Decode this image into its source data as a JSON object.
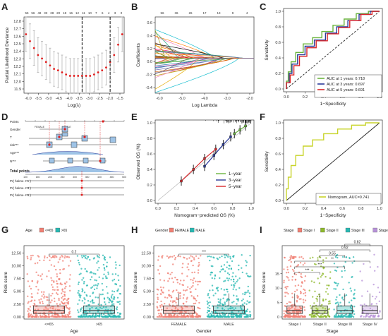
{
  "panels": {
    "A": "A",
    "B": "B",
    "C": "C",
    "D": "D",
    "E": "E",
    "F": "F",
    "G": "G",
    "H": "H",
    "I": "I"
  },
  "chart_data": [
    {
      "id": "A",
      "type": "scatter",
      "xlabel": "Log(λ)",
      "ylabel": "Partial Likelihood Deviance",
      "x": [
        -6.3,
        -6.1,
        -5.9,
        -5.7,
        -5.5,
        -5.3,
        -5.1,
        -4.9,
        -4.7,
        -4.5,
        -4.3,
        -4.1,
        -3.9,
        -3.7,
        -3.5,
        -3.3,
        -3.1,
        -2.9,
        -2.7,
        -2.5,
        -2.3,
        -2.1,
        -1.9,
        -1.7,
        -1.5
      ],
      "y": [
        12.7,
        12.6,
        12.5,
        12.4,
        12.35,
        12.3,
        12.25,
        12.2,
        12.18,
        12.15,
        12.12,
        12.1,
        12.1,
        12.1,
        12.1,
        12.1,
        12.1,
        12.12,
        12.15,
        12.18,
        12.22,
        12.3,
        12.4,
        12.55,
        12.7
      ],
      "err": 0.25,
      "xticks": [
        "-6.0",
        "-5.5",
        "-5.0",
        "-4.5",
        "-4.0",
        "-3.5",
        "-3.0",
        "-2.5",
        "-2.0",
        "-1.5"
      ],
      "yticks": [
        "11.9",
        "12.0",
        "12.1",
        "12.2",
        "12.3",
        "12.4",
        "12.5",
        "12.6",
        "12.7",
        "12.8"
      ],
      "top_ticks": [
        "55",
        "56",
        "48",
        "33",
        "28",
        "20",
        "18",
        "16",
        "12",
        "11",
        "10",
        "7",
        "6",
        "4",
        "3",
        "0"
      ],
      "xlim": [
        -6.4,
        -1.4
      ],
      "ylim": [
        11.85,
        12.95
      ],
      "vlines": [
        -3.5,
        -2.1
      ]
    },
    {
      "id": "B",
      "type": "line",
      "xlabel": "Log Lambda",
      "ylabel": "Coefficients",
      "xticks": [
        "-6.0",
        "-5.0",
        "-4.0",
        "-3.0",
        "-2.0"
      ],
      "yticks": [
        "-0.4",
        "-0.2",
        "0.0",
        "0.2",
        "0.4",
        "0.6"
      ],
      "top_ticks": [
        "56",
        "36",
        "26",
        "17",
        "13",
        "9",
        "4"
      ],
      "xlim": [
        -6.3,
        -1.8
      ],
      "ylim": [
        -0.55,
        0.65
      ]
    },
    {
      "id": "C",
      "type": "line",
      "xlabel": "1−Specificity",
      "ylabel": "Sensitivity",
      "xticks": [
        "0.0",
        "0.2",
        "0.4",
        "0.6",
        "0.8",
        "1.0"
      ],
      "yticks": [
        "0.0",
        "0.2",
        "0.4",
        "0.6",
        "0.8",
        "1.0"
      ],
      "series": [
        {
          "name": "AUC at 1 years: 0.718",
          "color": "#6ab43e",
          "points": [
            [
              0,
              0
            ],
            [
              0.02,
              0.1
            ],
            [
              0.05,
              0.22
            ],
            [
              0.1,
              0.35
            ],
            [
              0.18,
              0.47
            ],
            [
              0.28,
              0.58
            ],
            [
              0.38,
              0.66
            ],
            [
              0.5,
              0.74
            ],
            [
              0.62,
              0.82
            ],
            [
              0.75,
              0.9
            ],
            [
              0.88,
              0.97
            ],
            [
              1,
              1
            ]
          ]
        },
        {
          "name": "AUC at 3 years: 0.697",
          "color": "#2b3a9a",
          "points": [
            [
              0,
              0
            ],
            [
              0.03,
              0.08
            ],
            [
              0.06,
              0.2
            ],
            [
              0.12,
              0.32
            ],
            [
              0.2,
              0.44
            ],
            [
              0.3,
              0.55
            ],
            [
              0.42,
              0.63
            ],
            [
              0.54,
              0.72
            ],
            [
              0.66,
              0.8
            ],
            [
              0.78,
              0.88
            ],
            [
              0.9,
              0.96
            ],
            [
              1,
              1
            ]
          ]
        },
        {
          "name": "AUC at 5 years: 0.691",
          "color": "#d8262a",
          "points": [
            [
              0,
              0
            ],
            [
              0.04,
              0.08
            ],
            [
              0.08,
              0.18
            ],
            [
              0.14,
              0.3
            ],
            [
              0.22,
              0.42
            ],
            [
              0.32,
              0.53
            ],
            [
              0.44,
              0.62
            ],
            [
              0.56,
              0.71
            ],
            [
              0.68,
              0.79
            ],
            [
              0.8,
              0.88
            ],
            [
              0.92,
              0.96
            ],
            [
              1,
              1
            ]
          ]
        }
      ]
    },
    {
      "id": "D",
      "type": "table",
      "rows": [
        "Points",
        "Gender",
        "T",
        "risk***",
        "Age***",
        "N***",
        "Total points",
        "Pr( futime < 1 )",
        "Pr( futime < 3 )",
        "Pr( futime < 5 )"
      ],
      "gender_ticks": [
        "FEMALE",
        "MALE"
      ],
      "total_ticks": [
        "100",
        "150",
        "200",
        "250",
        "300",
        "350",
        "400",
        "450",
        "500"
      ]
    },
    {
      "id": "E",
      "type": "line",
      "xlabel": "Nomogram−predicted OS (%)",
      "ylabel": "Observed OS (%)",
      "xticks": [
        "0.0",
        "0.2",
        "0.4",
        "0.6",
        "0.8",
        "1.0"
      ],
      "yticks": [
        "0.0",
        "0.2",
        "0.4",
        "0.6",
        "0.8",
        "1.0"
      ],
      "series": [
        {
          "name": "1−year",
          "color": "#6ab43e",
          "points": [
            [
              0.82,
              0.86
            ],
            [
              0.88,
              0.91
            ],
            [
              0.94,
              0.96
            ]
          ]
        },
        {
          "name": "3−year",
          "color": "#2b3a9a",
          "points": [
            [
              0.5,
              0.44
            ],
            [
              0.6,
              0.58
            ],
            [
              0.7,
              0.72
            ],
            [
              0.78,
              0.82
            ]
          ]
        },
        {
          "name": "5−year",
          "color": "#d8262a",
          "points": [
            [
              0.25,
              0.25
            ],
            [
              0.38,
              0.4
            ],
            [
              0.5,
              0.54
            ],
            [
              0.62,
              0.66
            ]
          ]
        }
      ]
    },
    {
      "id": "F",
      "type": "line",
      "xlabel": "1−Specificity",
      "ylabel": "Sensitivity",
      "xticks": [
        "0.0",
        "0.2",
        "0.4",
        "0.6",
        "0.8",
        "1.0"
      ],
      "yticks": [
        "0.0",
        "0.2",
        "0.4",
        "0.6",
        "0.8",
        "1.0"
      ],
      "series": [
        {
          "name": "Nomogram, AUC=0.741",
          "color": "#c8d42a",
          "points": [
            [
              0,
              0
            ],
            [
              0.02,
              0.15
            ],
            [
              0.05,
              0.3
            ],
            [
              0.1,
              0.45
            ],
            [
              0.18,
              0.58
            ],
            [
              0.28,
              0.7
            ],
            [
              0.4,
              0.78
            ],
            [
              0.55,
              0.86
            ],
            [
              0.7,
              0.92
            ],
            [
              0.85,
              0.97
            ],
            [
              1,
              1
            ]
          ]
        }
      ]
    },
    {
      "id": "G",
      "type": "bar",
      "xlabel": "Age",
      "ylabel": "Risk score",
      "legend_title": "Age",
      "categories": [
        "<=65",
        ">65"
      ],
      "colors": [
        "#f07f73",
        "#27b8b2"
      ],
      "pvalue": "0.2",
      "yticks": [
        "0.00",
        "2.50",
        "5.00",
        "7.50",
        "10.00",
        "12.50"
      ],
      "ylim": [
        0,
        13.5
      ]
    },
    {
      "id": "H",
      "type": "bar",
      "xlabel": "Gender",
      "ylabel": "Risk score",
      "legend_title": "Gender",
      "categories": [
        "FEMALE",
        "MALE"
      ],
      "colors": [
        "#f07f73",
        "#27b8b2"
      ],
      "pvalue": "***",
      "yticks": [
        "0.00",
        "2.50",
        "5.00",
        "7.50",
        "10.00",
        "12.50"
      ],
      "ylim": [
        0,
        13.5
      ]
    },
    {
      "id": "I",
      "type": "bar",
      "xlabel": "Stage",
      "ylabel": "Risk score",
      "legend_title": "Stage",
      "categories": [
        "Stage I",
        "Stage II",
        "Stage III",
        "Stage IV"
      ],
      "colors": [
        "#f07f73",
        "#8db82b",
        "#27b8b2",
        "#b792d8"
      ],
      "comparisons": [
        {
          "a": 0,
          "b": 1,
          "label": "***"
        },
        {
          "a": 0,
          "b": 2,
          "label": "***"
        },
        {
          "a": 0,
          "b": 3,
          "label": "**"
        },
        {
          "a": 1,
          "b": 2,
          "label": "0.55"
        },
        {
          "a": 1,
          "b": 3,
          "label": "0.92"
        },
        {
          "a": 2,
          "b": 3,
          "label": "0.82"
        }
      ],
      "yticks": [
        "0",
        "5",
        "10",
        "15"
      ],
      "ylim": [
        0,
        24
      ]
    }
  ]
}
